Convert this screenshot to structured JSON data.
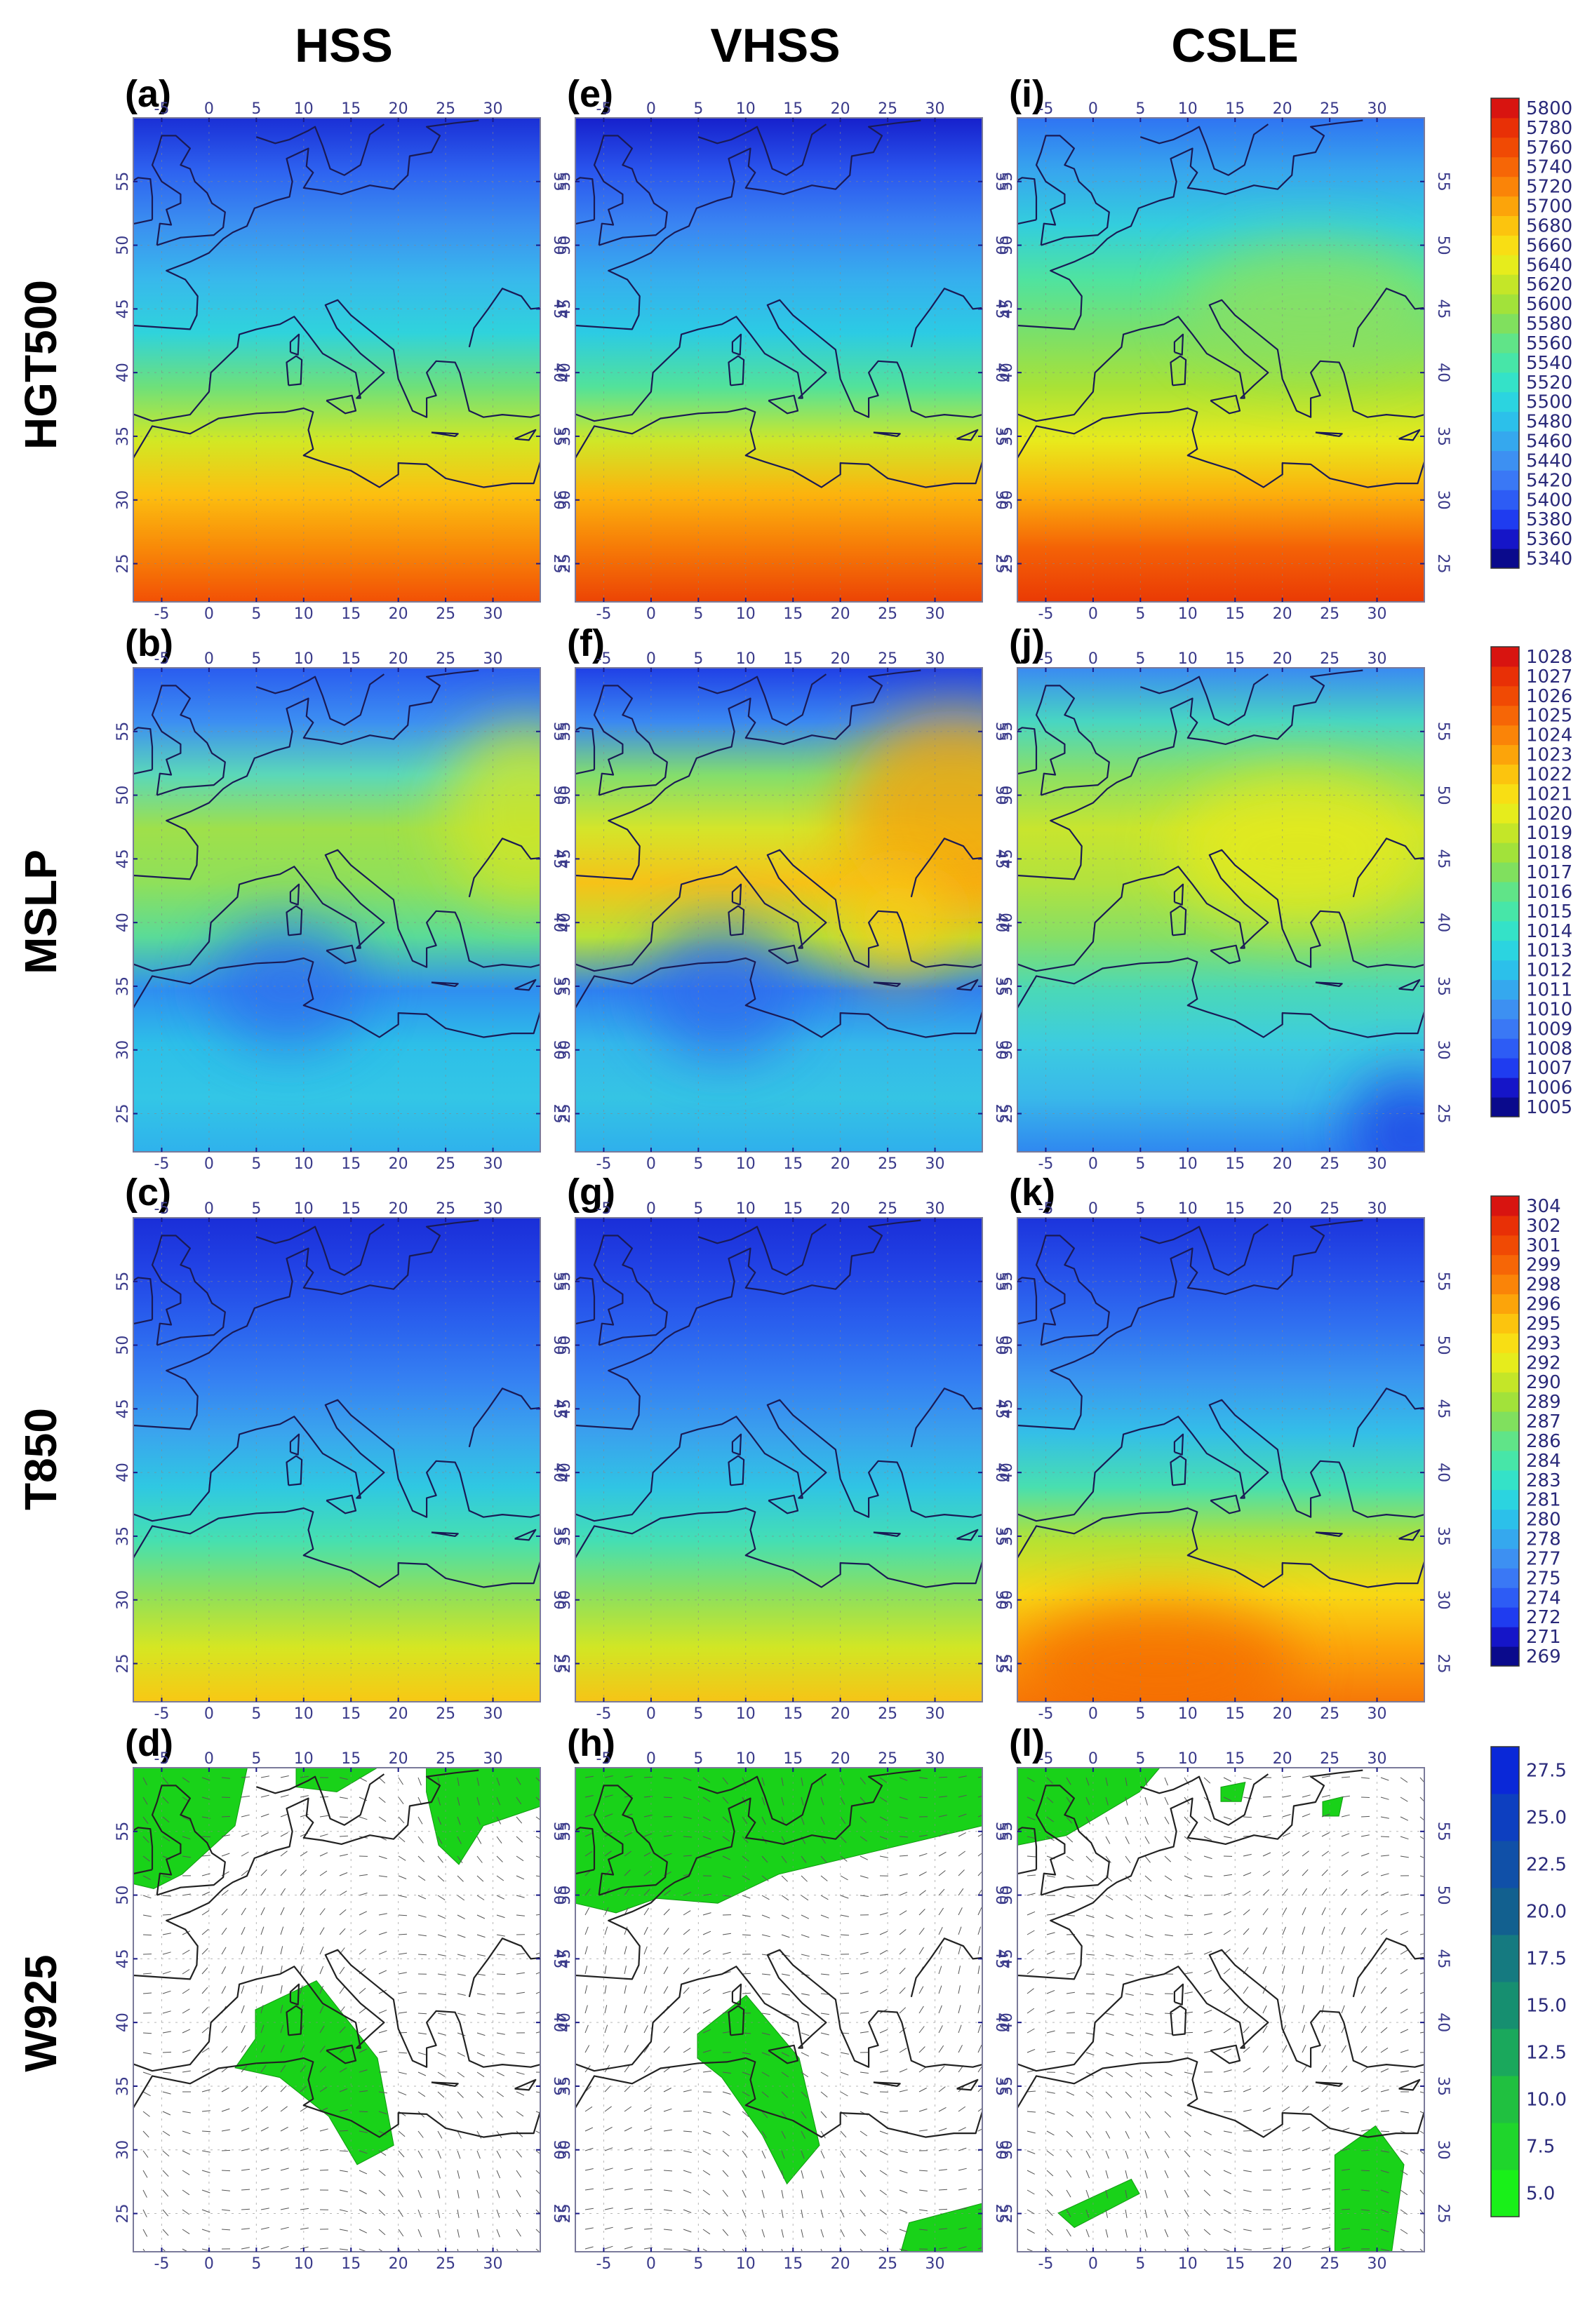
{
  "figure": {
    "column_titles": [
      "HSS",
      "VHSS",
      "CSLE"
    ],
    "row_titles": [
      "HGT500",
      "MSLP",
      "T850",
      "W925"
    ],
    "panel_labels": [
      [
        "(a)",
        "(e)",
        "(i)"
      ],
      [
        "(b)",
        "(f)",
        "(j)"
      ],
      [
        "(c)",
        "(g)",
        "(k)"
      ],
      [
        "(d)",
        "(h)",
        "(l)"
      ]
    ]
  },
  "chart_data": [
    {
      "type": "heatmap",
      "variable": "HGT500",
      "panels": [
        "(a) HSS",
        "(e) VHSS",
        "(i) CSLE"
      ],
      "x_ticks": [
        "-5",
        "0",
        "5",
        "10",
        "15",
        "20",
        "25",
        "30"
      ],
      "y_ticks": [
        "25",
        "30",
        "35",
        "40",
        "45",
        "50",
        "55"
      ],
      "xlim": [
        -8,
        35
      ],
      "ylim": [
        22,
        60
      ],
      "colorbar_levels": [
        "5340",
        "5360",
        "5380",
        "5400",
        "5420",
        "5440",
        "5460",
        "5480",
        "5500",
        "5520",
        "5540",
        "5560",
        "5580",
        "5600",
        "5620",
        "5640",
        "5660",
        "5680",
        "5700",
        "5720",
        "5740",
        "5760",
        "5780",
        "5800"
      ],
      "colorbar_colors": [
        "#0a0a8c",
        "#1515c8",
        "#1f3cf0",
        "#2d5cf5",
        "#3a78f5",
        "#3d90f2",
        "#35a8ee",
        "#2cc0ea",
        "#2bd4e0",
        "#34e2c8",
        "#47e6a8",
        "#60e488",
        "#80e05e",
        "#a2e23a",
        "#c4e628",
        "#e6ec1c",
        "#f8de14",
        "#fcc40e",
        "#fca40a",
        "#fa8408",
        "#f66606",
        "#f04a04",
        "#e83006",
        "#d81410"
      ],
      "panel_profiles": [
        [
          "#1a2fd6",
          "#2e63f0",
          "#3b90f0",
          "#38b8ec",
          "#2fd3dc",
          "#6ee07a",
          "#d2e824",
          "#fcbf10",
          "#f88908",
          "#f25005"
        ],
        [
          "#1620cc",
          "#2a56ee",
          "#3a85f2",
          "#36aeee",
          "#2ccbe4",
          "#52e29a",
          "#cfe728",
          "#fcb30d",
          "#f67a07",
          "#ec4405"
        ],
        [
          "#2f74f2",
          "#37a6ee",
          "#33cedd",
          "#4fe3a0",
          "#7ae06a",
          "#a9e236",
          "#e8ea1c",
          "#fcae0c",
          "#f46206",
          "#ea3a05"
        ]
      ]
    },
    {
      "type": "heatmap",
      "variable": "MSLP",
      "panels": [
        "(b) HSS",
        "(f) VHSS",
        "(j) CSLE"
      ],
      "x_ticks": [
        "-5",
        "0",
        "5",
        "10",
        "15",
        "20",
        "25",
        "30"
      ],
      "y_ticks": [
        "25",
        "30",
        "35",
        "40",
        "45",
        "50",
        "55"
      ],
      "xlim": [
        -8,
        35
      ],
      "ylim": [
        22,
        60
      ],
      "colorbar_levels": [
        "1005",
        "1006",
        "1007",
        "1008",
        "1009",
        "1010",
        "1011",
        "1012",
        "1013",
        "1014",
        "1015",
        "1016",
        "1017",
        "1018",
        "1019",
        "1020",
        "1021",
        "1022",
        "1023",
        "1024",
        "1025",
        "1026",
        "1027",
        "1028"
      ],
      "colorbar_colors": [
        "#0a0a8c",
        "#1515c8",
        "#1f3cf0",
        "#2d5cf5",
        "#3a78f5",
        "#3d90f2",
        "#35a8ee",
        "#2cc0ea",
        "#2bd4e0",
        "#34e2c8",
        "#47e6a8",
        "#60e488",
        "#80e05e",
        "#a2e23a",
        "#c4e628",
        "#e6ec1c",
        "#f8de14",
        "#fcc40e",
        "#fca40a",
        "#fa8408",
        "#f66606",
        "#f04a04",
        "#e83006",
        "#d81410"
      ],
      "panel_profiles": [
        [
          "#2a5cef",
          "#3c8ef2",
          "#5bd8b8",
          "#9fe04a",
          "#8fe05a",
          "#5adb98",
          "#2f8ff0",
          "#2dbfe8",
          "#33c6e6",
          "#2fb2ec"
        ],
        [
          "#2040e6",
          "#3a88f2",
          "#83de6c",
          "#d4e52a",
          "#f6c218",
          "#b8e236",
          "#2f80f0",
          "#34b8ea",
          "#35c4e4",
          "#2fb0ec"
        ],
        [
          "#3a8af2",
          "#48d6c2",
          "#8ce064",
          "#c8e52e",
          "#b2e23e",
          "#86df66",
          "#4ad8b8",
          "#3ccce0",
          "#39b8ea",
          "#2f88f0"
        ]
      ]
    },
    {
      "type": "heatmap",
      "variable": "T850",
      "panels": [
        "(c) HSS",
        "(g) VHSS",
        "(k) CSLE"
      ],
      "x_ticks": [
        "-5",
        "0",
        "5",
        "10",
        "15",
        "20",
        "25",
        "30"
      ],
      "y_ticks": [
        "25",
        "30",
        "35",
        "40",
        "45",
        "50",
        "55"
      ],
      "xlim": [
        -8,
        35
      ],
      "ylim": [
        22,
        60
      ],
      "colorbar_levels": [
        "269",
        "271",
        "272",
        "274",
        "275",
        "277",
        "278",
        "280",
        "281",
        "283",
        "284",
        "286",
        "287",
        "289",
        "290",
        "292",
        "293",
        "295",
        "296",
        "298",
        "299",
        "301",
        "302",
        "304"
      ],
      "colorbar_colors": [
        "#0a0a8c",
        "#1515c8",
        "#1f3cf0",
        "#2d5cf5",
        "#3a78f5",
        "#3d90f2",
        "#35a8ee",
        "#2cc0ea",
        "#2bd4e0",
        "#34e2c8",
        "#47e6a8",
        "#60e488",
        "#80e05e",
        "#a2e23a",
        "#c4e628",
        "#e6ec1c",
        "#f8de14",
        "#fcc40e",
        "#fca40a",
        "#fa8408",
        "#f66606",
        "#f04a04",
        "#e83006",
        "#d81410"
      ],
      "panel_profiles": [
        [
          "#1a2ed8",
          "#2244e6",
          "#2a62ee",
          "#3580f2",
          "#3aa4ee",
          "#2fc8e2",
          "#46e0b0",
          "#8fe05a",
          "#d6e622",
          "#f8c814"
        ],
        [
          "#1a2ed8",
          "#2244e6",
          "#2a60ee",
          "#347ef2",
          "#3aa0ee",
          "#30c4e4",
          "#44dfb4",
          "#8ce05e",
          "#d2e624",
          "#f6c416"
        ],
        [
          "#1c34dc",
          "#2650ea",
          "#3070f0",
          "#3a96f0",
          "#34bee8",
          "#48dfb0",
          "#b6e232",
          "#f8d814",
          "#fca40a",
          "#f67808"
        ]
      ]
    },
    {
      "type": "vector_field",
      "variable": "W925",
      "panels": [
        "(d) HSS",
        "(h) VHSS",
        "(l) CSLE"
      ],
      "x_ticks": [
        "-5",
        "0",
        "5",
        "10",
        "15",
        "20",
        "25",
        "30"
      ],
      "y_ticks": [
        "25",
        "30",
        "35",
        "40",
        "45",
        "50",
        "55"
      ],
      "xlim": [
        -8,
        35
      ],
      "ylim": [
        22,
        60
      ],
      "colorbar_levels": [
        "5.0",
        "7.5",
        "10.0",
        "12.5",
        "15.0",
        "17.5",
        "20.0",
        "22.5",
        "25.0",
        "27.5"
      ],
      "colorbar_colors": [
        "#19f019",
        "#1fd52c",
        "#20c040",
        "#1aa85c",
        "#168f70",
        "#157a80",
        "#12608f",
        "#1050a8",
        "#0d3fc0",
        "#0a28d8"
      ],
      "shading_color": "#19d219",
      "shading_threshold": "10.0"
    }
  ]
}
